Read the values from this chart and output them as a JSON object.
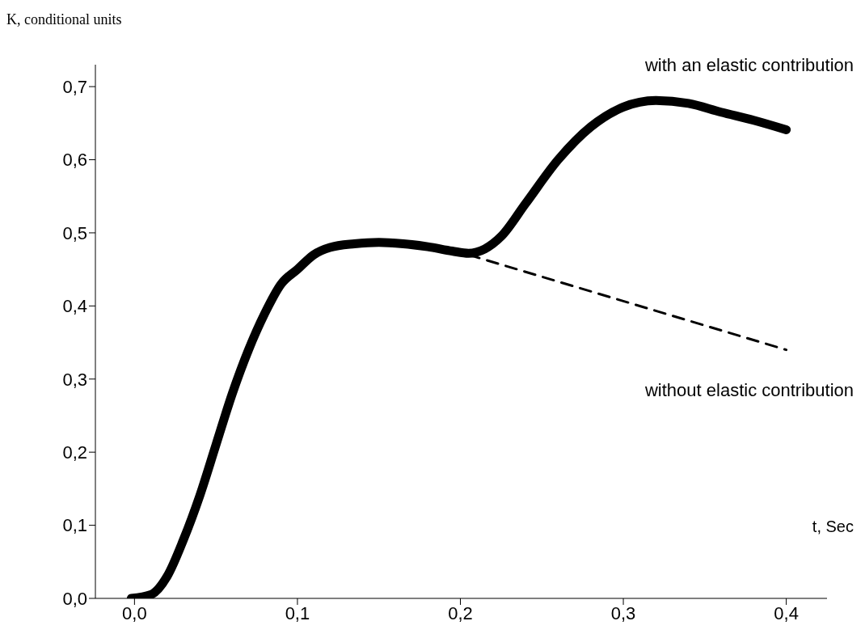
{
  "chart_data": {
    "type": "line",
    "xlabel": "t, Sec",
    "ylabel": "K, conditional units",
    "xlim": [
      -0.024,
      0.425
    ],
    "ylim": [
      0,
      0.73
    ],
    "xticks": [
      {
        "value": 0,
        "label": "0,0"
      },
      {
        "value": 0.1,
        "label": "0,1"
      },
      {
        "value": 0.2,
        "label": "0,2"
      },
      {
        "value": 0.3,
        "label": "0,3"
      },
      {
        "value": 0.4,
        "label": "0,4"
      }
    ],
    "yticks": [
      {
        "value": 0,
        "label": "0,0"
      },
      {
        "value": 0.1,
        "label": "0,1"
      },
      {
        "value": 0.2,
        "label": "0,2"
      },
      {
        "value": 0.3,
        "label": "0,3"
      },
      {
        "value": 0.4,
        "label": "0,4"
      },
      {
        "value": 0.5,
        "label": "0,5"
      },
      {
        "value": 0.6,
        "label": "0,6"
      },
      {
        "value": 0.7,
        "label": "0,7"
      }
    ],
    "grid": false,
    "legend": false,
    "marker": "none",
    "series": [
      {
        "name": "with an elastic contribution",
        "color": "#000000",
        "line_style": "solid",
        "x": [
          -0.002,
          0.01,
          0.02,
          0.03,
          0.04,
          0.05,
          0.06,
          0.07,
          0.08,
          0.09,
          0.1,
          0.11,
          0.12,
          0.135,
          0.15,
          0.165,
          0.18,
          0.195,
          0.205,
          0.215,
          0.225,
          0.24,
          0.26,
          0.28,
          0.3,
          0.32,
          0.34,
          0.36,
          0.38,
          0.4
        ],
        "values": [
          0,
          0.005,
          0.03,
          0.08,
          0.14,
          0.21,
          0.28,
          0.34,
          0.39,
          0.43,
          0.45,
          0.47,
          0.48,
          0.485,
          0.487,
          0.485,
          0.481,
          0.475,
          0.472,
          0.478,
          0.495,
          0.54,
          0.6,
          0.645,
          0.672,
          0.681,
          0.677,
          0.665,
          0.654,
          0.641
        ]
      },
      {
        "name": "without elastic contribution",
        "color": "#000000",
        "line_style": "dashed",
        "x": [
          0.205,
          0.4
        ],
        "values": [
          0.47,
          0.34
        ]
      }
    ]
  }
}
